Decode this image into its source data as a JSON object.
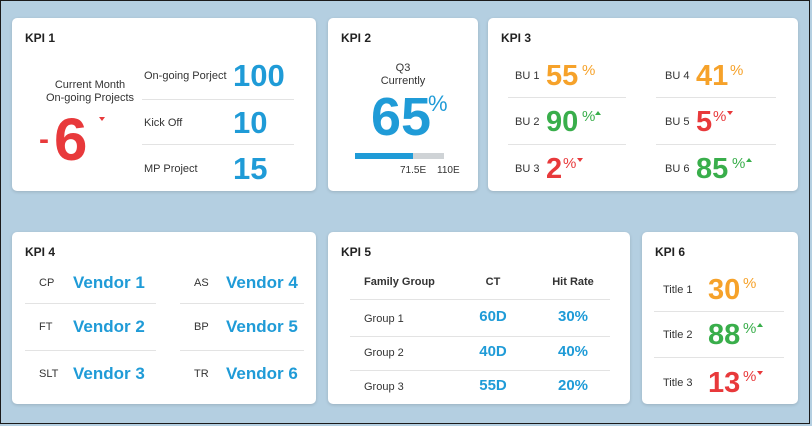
{
  "kpi1": {
    "title": "KPI 1",
    "label_line1": "Current Month",
    "label_line2": "On-going Projects",
    "delta_sign": "-",
    "delta_value": "6",
    "rows": [
      {
        "label": "On-going Porject",
        "value": "100"
      },
      {
        "label": "Kick Off",
        "value": "10"
      },
      {
        "label": "MP Project",
        "value": "15"
      }
    ]
  },
  "kpi2": {
    "title": "KPI 2",
    "label_line1": "Q3",
    "label_line2": "Currently",
    "value": "65",
    "unit": "%",
    "progress": 0.65,
    "marker1": "71.5E",
    "marker2": "110E"
  },
  "kpi3": {
    "title": "KPI 3",
    "items": [
      {
        "label": "BU 1",
        "value": "55",
        "unit": "%",
        "trend": "none",
        "color": "#f6a22a"
      },
      {
        "label": "BU 2",
        "value": "90",
        "unit": "%",
        "trend": "up",
        "color": "#39ae4b"
      },
      {
        "label": "BU 3",
        "value": "2",
        "unit": "%",
        "trend": "down",
        "color": "#e8393b"
      },
      {
        "label": "BU 4",
        "value": "41",
        "unit": "%",
        "trend": "none",
        "color": "#f6a22a"
      },
      {
        "label": "BU 5",
        "value": "5",
        "unit": "%",
        "trend": "down",
        "color": "#e8393b"
      },
      {
        "label": "BU 6",
        "value": "85",
        "unit": "%",
        "trend": "up",
        "color": "#39ae4b"
      }
    ]
  },
  "kpi4": {
    "title": "KPI 4",
    "items": [
      {
        "code": "CP",
        "vendor": "Vendor 1"
      },
      {
        "code": "FT",
        "vendor": "Vendor 2"
      },
      {
        "code": "SLT",
        "vendor": "Vendor 3"
      },
      {
        "code": "AS",
        "vendor": "Vendor 4"
      },
      {
        "code": "BP",
        "vendor": "Vendor 5"
      },
      {
        "code": "TR",
        "vendor": "Vendor 6"
      }
    ]
  },
  "kpi5": {
    "title": "KPI 5",
    "headers": [
      "Family Group",
      "CT",
      "Hit Rate"
    ],
    "rows": [
      {
        "group": "Group 1",
        "ct": "60D",
        "hit": "30%"
      },
      {
        "group": "Group 2",
        "ct": "40D",
        "hit": "40%"
      },
      {
        "group": "Group 3",
        "ct": "55D",
        "hit": "20%"
      }
    ]
  },
  "kpi6": {
    "title": "KPI 6",
    "items": [
      {
        "label": "Title 1",
        "value": "30",
        "unit": "%",
        "trend": "none",
        "color": "#f6a22a"
      },
      {
        "label": "Title 2",
        "value": "88",
        "unit": "%",
        "trend": "up",
        "color": "#39ae4b"
      },
      {
        "label": "Title 3",
        "value": "13",
        "unit": "%",
        "trend": "down",
        "color": "#e8393b"
      }
    ]
  },
  "colors": {
    "blue": "#1f9bd7",
    "orange": "#f6a22a",
    "green": "#39ae4b",
    "red": "#e8393b",
    "background": "#b4cfe1"
  }
}
